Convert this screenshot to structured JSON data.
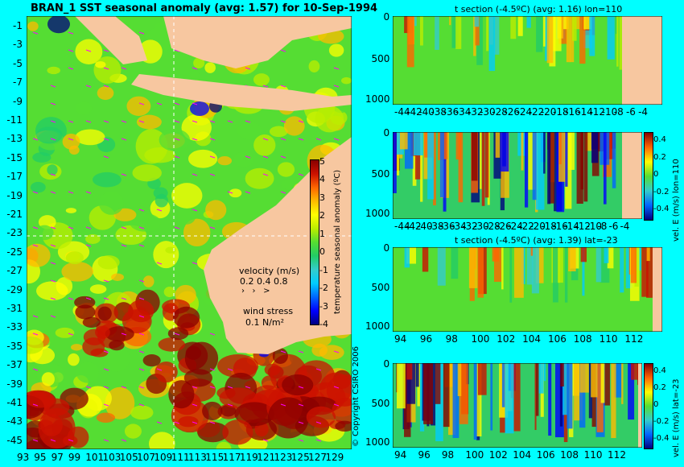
{
  "main_title": "BRAN_1  SST seasonal anomaly (avg: 1.57) for 10-Sep-1994",
  "colors": {
    "page_bg": "#00ffff",
    "land": "#f7c7a0",
    "levels": [
      "#00007f",
      "#0000ff",
      "#0066ff",
      "#00ccff",
      "#33cccc",
      "#22cc66",
      "#55dd33",
      "#bbee00",
      "#ffff00",
      "#ffbb00",
      "#ff6600",
      "#cc1100",
      "#880000"
    ],
    "wind_arrow": "#ff00ff"
  },
  "map": {
    "lat_ticks": [
      "-1",
      "-3",
      "-5",
      "-7",
      "-9",
      "-11",
      "-13",
      "-15",
      "-17",
      "-19",
      "-21",
      "-23",
      "-25",
      "-27",
      "-29",
      "-31",
      "-33",
      "-35",
      "-37",
      "-39",
      "-41",
      "-43",
      "-45"
    ],
    "lon_ticks": [
      "93",
      "95",
      "97",
      "99",
      "101",
      "103",
      "105",
      "107",
      "109",
      "111",
      "113",
      "115",
      "117",
      "119",
      "121",
      "123",
      "125",
      "127",
      "129"
    ],
    "colorbar_ticks": [
      "5",
      "4",
      "3",
      "2",
      "1",
      "0",
      "-1",
      "-2",
      "-3",
      "-4"
    ],
    "colorbar_label": "temperature seasonal anomaly (ºC)",
    "velocity_label": "velocity (m/s)",
    "velocity_values": "0.2 0.4 0.8",
    "wind_label": "wind stress",
    "wind_value": "0.1 N/m²",
    "copyright": "© Copyright CSIRO 2006"
  },
  "panels": [
    {
      "id": "p1",
      "title": "t section (-4.5ºC) (avg: 1.16) lon=110",
      "side_label": "",
      "x_ticks": [
        "-44",
        "-42",
        "-40",
        "-38",
        "-36",
        "-34",
        "-32",
        "-30",
        "-28",
        "-26",
        "-24",
        "-22",
        "-20",
        "-18",
        "-16",
        "-14",
        "-12",
        "-10",
        "-8",
        "-6",
        "-4"
      ],
      "y_ticks": [
        "0",
        "500",
        "1000"
      ],
      "cb_ticks": []
    },
    {
      "id": "p2",
      "title": "",
      "side_label": "vel. E (m/s) lon=110",
      "x_ticks": [
        "-44",
        "-42",
        "-40",
        "-38",
        "-36",
        "-34",
        "-32",
        "-30",
        "-28",
        "-26",
        "-24",
        "-22",
        "-20",
        "-18",
        "-16",
        "-14",
        "-12",
        "-10",
        "-8",
        "-6",
        "-4"
      ],
      "y_ticks": [
        "0",
        "500",
        "1000"
      ],
      "cb_ticks": [
        "0.4",
        "0.2",
        "0",
        "-0.2",
        "-0.4"
      ]
    },
    {
      "id": "p3",
      "title": "t section (-4.5ºC) (avg: 1.39) lat=-23",
      "side_label": "",
      "x_ticks": [
        "94",
        "96",
        "98",
        "100",
        "102",
        "104",
        "106",
        "108",
        "110",
        "112"
      ],
      "y_ticks": [
        "0",
        "500",
        "1000"
      ],
      "cb_ticks": []
    },
    {
      "id": "p4",
      "title": "",
      "side_label": "vel. E (m/s) lat=-23",
      "x_ticks": [
        "94",
        "96",
        "98",
        "100",
        "102",
        "104",
        "106",
        "108",
        "110",
        "112"
      ],
      "y_ticks": [
        "0",
        "500",
        "1000"
      ],
      "cb_ticks": [
        "0.4",
        "0.2",
        "0",
        "-0.2",
        "-0.4"
      ]
    }
  ],
  "chart_data": [
    {
      "type": "heatmap",
      "title": "BRAN_1  SST seasonal anomaly (avg: 1.57) for 10-Sep-1994",
      "xlabel": "",
      "ylabel": "",
      "x_range": [
        93,
        130
      ],
      "y_range": [
        -45,
        0
      ],
      "colorbar_range": [
        -4,
        5
      ],
      "average": 1.57
    },
    {
      "type": "heatmap",
      "title": "t section (-4.5ºC) (avg: 1.16) lon=110",
      "x_range": [
        -45,
        -3
      ],
      "y_range": [
        1050,
        0
      ],
      "average": 1.16
    },
    {
      "type": "heatmap",
      "title": "",
      "colorbar_label": "vel. E (m/s) lon=110",
      "x_range": [
        -45,
        -3
      ],
      "y_range": [
        1050,
        0
      ],
      "colorbar_range": [
        -0.5,
        0.5
      ]
    },
    {
      "type": "heatmap",
      "title": "t section (-4.5ºC) (avg: 1.39) lat=-23",
      "x_range": [
        93,
        114
      ],
      "y_range": [
        1050,
        0
      ],
      "average": 1.39
    },
    {
      "type": "heatmap",
      "title": "",
      "colorbar_label": "vel. E (m/s) lat=-23",
      "x_range": [
        93,
        114
      ],
      "y_range": [
        1050,
        0
      ],
      "colorbar_range": [
        -0.5,
        0.5
      ]
    }
  ]
}
